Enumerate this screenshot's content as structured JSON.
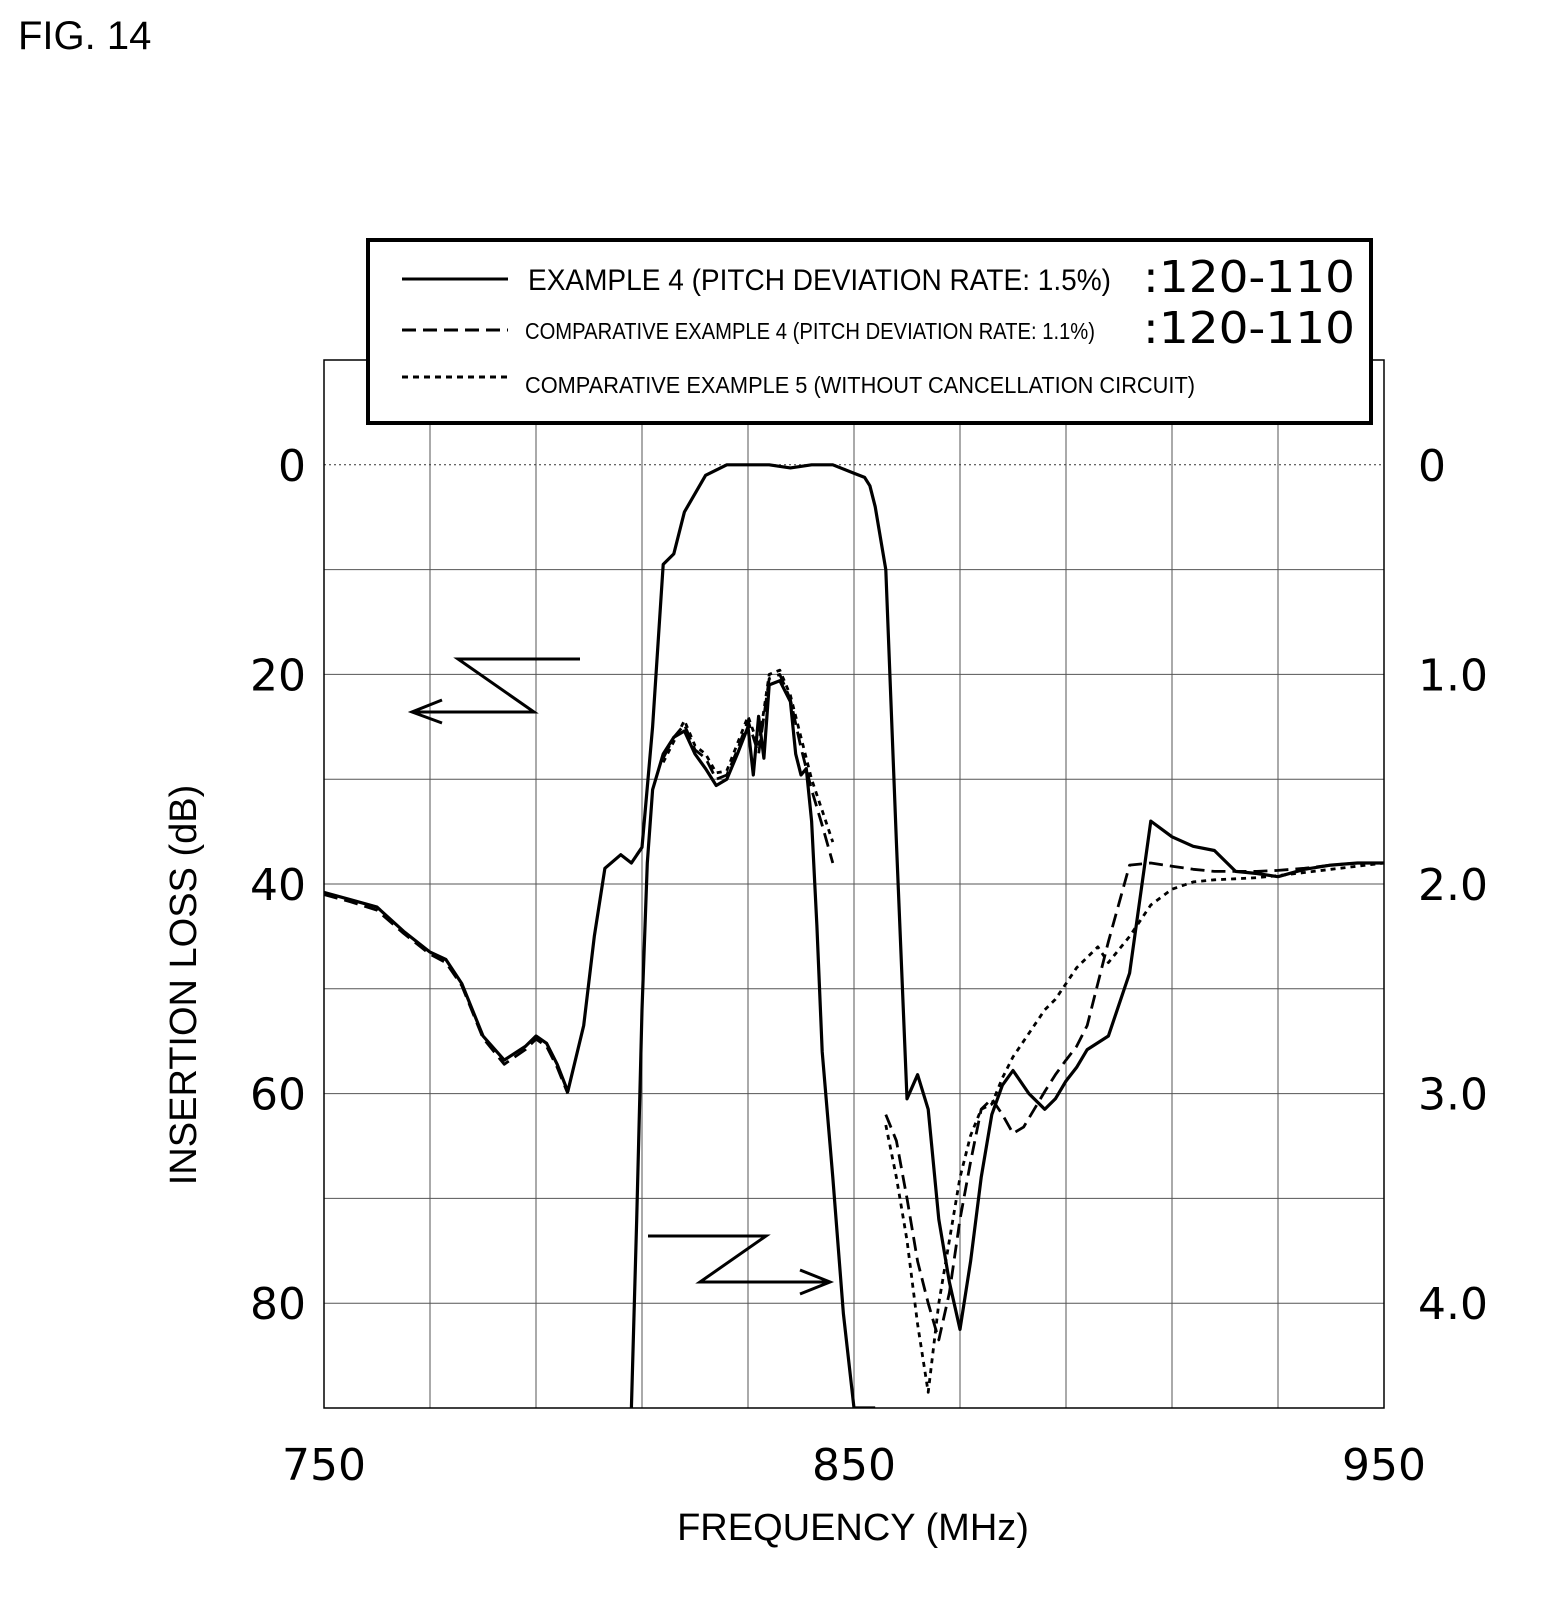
{
  "figure": {
    "label": "FIG. 14"
  },
  "legend": {
    "entries": [
      {
        "series_index": 0,
        "text": "EXAMPLE 4 (PITCH DEVIATION RATE: 1.5%)",
        "ref": ":120-110"
      },
      {
        "series_index": 1,
        "text": "COMPARATIVE EXAMPLE 4 (PITCH DEVIATION RATE: 1.1%)",
        "ref": ":120-110"
      },
      {
        "series_index": 2,
        "text": "COMPARATIVE EXAMPLE 5 (WITHOUT CANCELLATION CIRCUIT)",
        "ref": ""
      }
    ]
  },
  "chart_data": {
    "type": "line",
    "title": "",
    "xlabel": "FREQUENCY (MHz)",
    "ylabel": "INSERTION LOSS (dB)",
    "xlim": [
      750,
      950
    ],
    "ylim_left": [
      -10,
      90
    ],
    "ylim_right": [
      0,
      4.5
    ],
    "x_ticks": [
      750,
      850,
      950
    ],
    "x_tick_labels": [
      "750",
      "850",
      "950"
    ],
    "y_ticks_left": [
      0,
      20,
      40,
      60,
      80
    ],
    "y_tick_labels_left": [
      "0",
      "20",
      "40",
      "60",
      "80"
    ],
    "y_ticks_right": [
      0,
      1.0,
      2.0,
      3.0,
      4.0
    ],
    "y_tick_labels_right": [
      "0",
      "1.0",
      "2.0",
      "3.0",
      "4.0"
    ],
    "grid": true,
    "legend_position": "top",
    "annotations": [
      {
        "type": "arrow",
        "points_to": "left axis",
        "applies_to": "upper (wideband) curves"
      },
      {
        "type": "arrow",
        "points_to": "right axis",
        "applies_to": "lower (enlarged passband) curves"
      }
    ],
    "series": [
      {
        "name": "EXAMPLE 4 (PITCH DEVIATION RATE: 1.5%)",
        "style": "solid",
        "axis": "left",
        "segments": [
          {
            "x": [
              750,
              755,
              760,
              765,
              770,
              773,
              776,
              780,
              784,
              788,
              790,
              792,
              794,
              796,
              799,
              801,
              803,
              806,
              808,
              810,
              812,
              814,
              816,
              818,
              822,
              826,
              830,
              834,
              838,
              842,
              846,
              850,
              852,
              853,
              854,
              856,
              858,
              860,
              862,
              864,
              866,
              868,
              870,
              872,
              874,
              876,
              878,
              880,
              883,
              886,
              888,
              890,
              892,
              894,
              898,
              902,
              906,
              910,
              914,
              918,
              922,
              926,
              930,
              935,
              940,
              945,
              950
            ],
            "y": [
              40.8,
              41.5,
              42.2,
              44.5,
              46.5,
              47.2,
              49.5,
              54.5,
              56.8,
              55.5,
              54.5,
              55.2,
              57.2,
              59.8,
              53.5,
              45.0,
              38.5,
              37.2,
              38.0,
              36.5,
              25.0,
              9.5,
              8.5,
              4.5,
              1.0,
              0.0,
              0.0,
              0.0,
              0.3,
              0.0,
              0.0,
              0.8,
              1.2,
              2.0,
              4.0,
              10.0,
              36.0,
              60.5,
              58.2,
              61.5,
              72.0,
              78.0,
              82.5,
              76.0,
              68.0,
              62.0,
              59.2,
              57.8,
              60.0,
              61.5,
              60.5,
              58.8,
              57.5,
              55.8,
              54.5,
              48.5,
              34.0,
              35.5,
              36.4,
              36.8,
              38.8,
              39.0,
              39.3,
              38.6,
              38.2,
              38.0,
              38.0
            ]
          }
        ]
      },
      {
        "name": "COMPARATIVE EXAMPLE 4 (PITCH DEVIATION RATE: 1.1%)",
        "style": "dashed",
        "axis": "left",
        "segments": [
          {
            "x": [
              750,
              755,
              760,
              765,
              770,
              773,
              776,
              780,
              784,
              788,
              790,
              792,
              794,
              796
            ],
            "y": [
              41.0,
              41.7,
              42.5,
              44.7,
              46.7,
              47.5,
              49.7,
              54.7,
              57.2,
              55.8,
              54.8,
              55.5,
              57.5,
              60.0
            ]
          },
          {
            "x": [
              856,
              858,
              860,
              862,
              864,
              866,
              868,
              870,
              872,
              874,
              876,
              878,
              880,
              882,
              884,
              886,
              888,
              890,
              892,
              894,
              898,
              902,
              906,
              910,
              914,
              918,
              922,
              926,
              930,
              935,
              940,
              945,
              950
            ],
            "y": [
              62.0,
              64.5,
              70.0,
              76.0,
              80.0,
              83.5,
              79.0,
              72.0,
              66.5,
              61.5,
              60.5,
              62.0,
              63.8,
              63.2,
              61.5,
              59.8,
              58.2,
              56.8,
              55.5,
              53.5,
              45.5,
              38.2,
              38.0,
              38.3,
              38.6,
              38.8,
              38.8,
              38.8,
              38.7,
              38.5,
              38.2,
              38.0,
              38.0
            ]
          }
        ]
      },
      {
        "name": "COMPARATIVE EXAMPLE 5 (WITHOUT CANCELLATION CIRCUIT)",
        "style": "dotted",
        "axis": "left",
        "segments": [
          {
            "x": [
              856,
              858,
              860,
              862,
              864,
              866,
              868,
              870,
              872,
              874,
              876,
              878,
              880,
              882,
              884,
              886,
              888,
              890,
              892,
              894,
              896,
              898,
              902,
              906,
              910,
              914,
              918,
              922,
              926,
              930,
              935,
              940,
              945,
              950
            ],
            "y": [
              63.0,
              68.0,
              74.0,
              82.0,
              88.5,
              80.0,
              74.0,
              68.0,
              64.0,
              61.5,
              61.0,
              58.5,
              56.5,
              55.0,
              53.5,
              52.0,
              51.0,
              49.5,
              48.0,
              47.0,
              46.0,
              47.5,
              45.0,
              42.0,
              40.5,
              39.8,
              39.6,
              39.5,
              39.4,
              39.2,
              38.9,
              38.6,
              38.3,
              38.0
            ]
          }
        ]
      },
      {
        "name": "EXAMPLE 4 (PITCH DEVIATION RATE: 1.5%)",
        "style": "solid",
        "axis": "right",
        "segments": [
          {
            "x": [
              808,
              809,
              810,
              811,
              812,
              814,
              816,
              818,
              820,
              822,
              824,
              826,
              828,
              830,
              831,
              832,
              833,
              834,
              836,
              838,
              839,
              840,
              841,
              842,
              843,
              844,
              846,
              848,
              850,
              852,
              854
            ],
            "y": [
              4.5,
              3.6,
              2.6,
              1.9,
              1.55,
              1.38,
              1.3,
              1.27,
              1.38,
              1.45,
              1.53,
              1.5,
              1.38,
              1.25,
              1.48,
              1.2,
              1.4,
              1.05,
              1.03,
              1.13,
              1.38,
              1.48,
              1.45,
              1.7,
              2.2,
              2.8,
              3.4,
              4.05,
              4.5,
              4.5,
              4.5
            ]
          }
        ]
      },
      {
        "name": "COMPARATIVE EXAMPLE 4 (PITCH DEVIATION RATE: 1.1%)",
        "style": "dashed",
        "axis": "right",
        "segments": [
          {
            "x": [
              814,
              816,
              818,
              820,
              822,
              824,
              826,
              828,
              830,
              832,
              834,
              836,
              838,
              840,
              842,
              844,
              846
            ],
            "y": [
              1.4,
              1.3,
              1.24,
              1.36,
              1.4,
              1.5,
              1.48,
              1.36,
              1.22,
              1.38,
              1.02,
              1.0,
              1.12,
              1.35,
              1.55,
              1.72,
              1.9
            ]
          }
        ]
      },
      {
        "name": "COMPARATIVE EXAMPLE 5 (WITHOUT CANCELLATION CIRCUIT)",
        "style": "dotted",
        "axis": "right",
        "segments": [
          {
            "x": [
              814,
              816,
              818,
              820,
              822,
              824,
              826,
              828,
              830,
              832,
              834,
              836,
              838,
              840,
              842,
              844,
              846
            ],
            "y": [
              1.42,
              1.32,
              1.22,
              1.34,
              1.38,
              1.47,
              1.46,
              1.33,
              1.2,
              1.34,
              1.0,
              0.98,
              1.1,
              1.3,
              1.5,
              1.65,
              1.8
            ]
          }
        ]
      }
    ]
  }
}
